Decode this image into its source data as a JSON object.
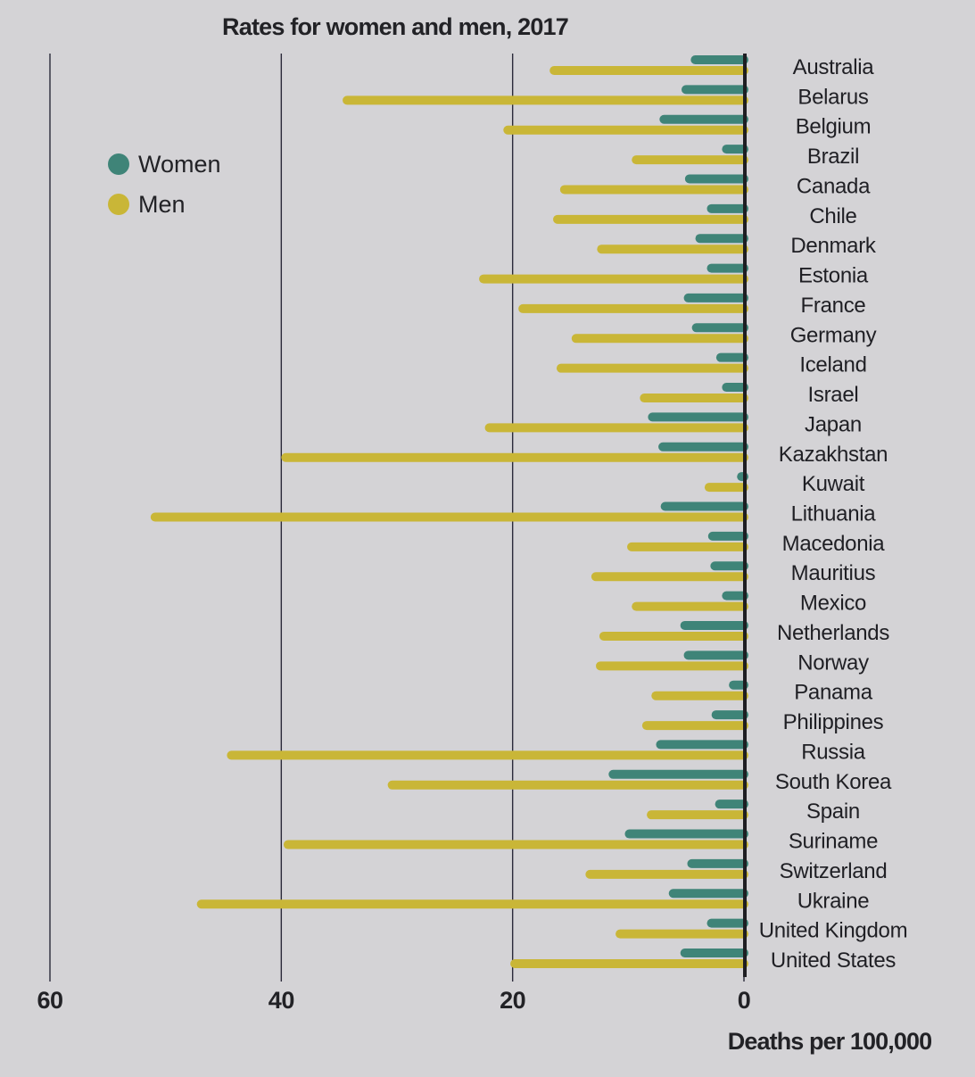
{
  "chart_data": {
    "type": "bar",
    "orientation": "horizontal",
    "title": "Rates for women and men, 2017",
    "xlabel": "Deaths per 100,000",
    "ylabel": "",
    "xlim": [
      0,
      60
    ],
    "x_direction": "reversed",
    "xticks": [
      60,
      40,
      20,
      0
    ],
    "grid": true,
    "legend_position": "top-left",
    "categories": [
      "Australia",
      "Belarus",
      "Belgium",
      "Brazil",
      "Canada",
      "Chile",
      "Denmark",
      "Estonia",
      "France",
      "Germany",
      "Iceland",
      "Israel",
      "Japan",
      "Kazakhstan",
      "Kuwait",
      "Lithuania",
      "Macedonia",
      "Mauritius",
      "Mexico",
      "Netherlands",
      "Norway",
      "Panama",
      "Philippines",
      "Russia",
      "South Korea",
      "Spain",
      "Suriname",
      "Switzerland",
      "Ukraine",
      "United Kingdom",
      "United States"
    ],
    "series": [
      {
        "name": "Women",
        "color": "#3f8478",
        "values": [
          4.6,
          5.4,
          7.3,
          1.9,
          5.1,
          3.2,
          4.2,
          3.2,
          5.2,
          4.5,
          2.4,
          1.9,
          8.3,
          7.4,
          0.6,
          7.2,
          3.1,
          2.9,
          1.9,
          5.5,
          5.2,
          1.3,
          2.8,
          7.6,
          11.7,
          2.5,
          10.3,
          4.9,
          6.5,
          3.2,
          5.5
        ]
      },
      {
        "name": "Men",
        "color": "#c9b637",
        "values": [
          16.8,
          34.7,
          20.8,
          9.7,
          15.9,
          16.5,
          12.7,
          22.9,
          19.5,
          14.9,
          16.2,
          9.0,
          22.4,
          40.0,
          3.4,
          51.3,
          10.1,
          13.2,
          9.7,
          12.5,
          12.8,
          8.0,
          8.8,
          44.7,
          30.8,
          8.4,
          39.8,
          13.7,
          47.3,
          11.1,
          20.2
        ]
      }
    ]
  }
}
